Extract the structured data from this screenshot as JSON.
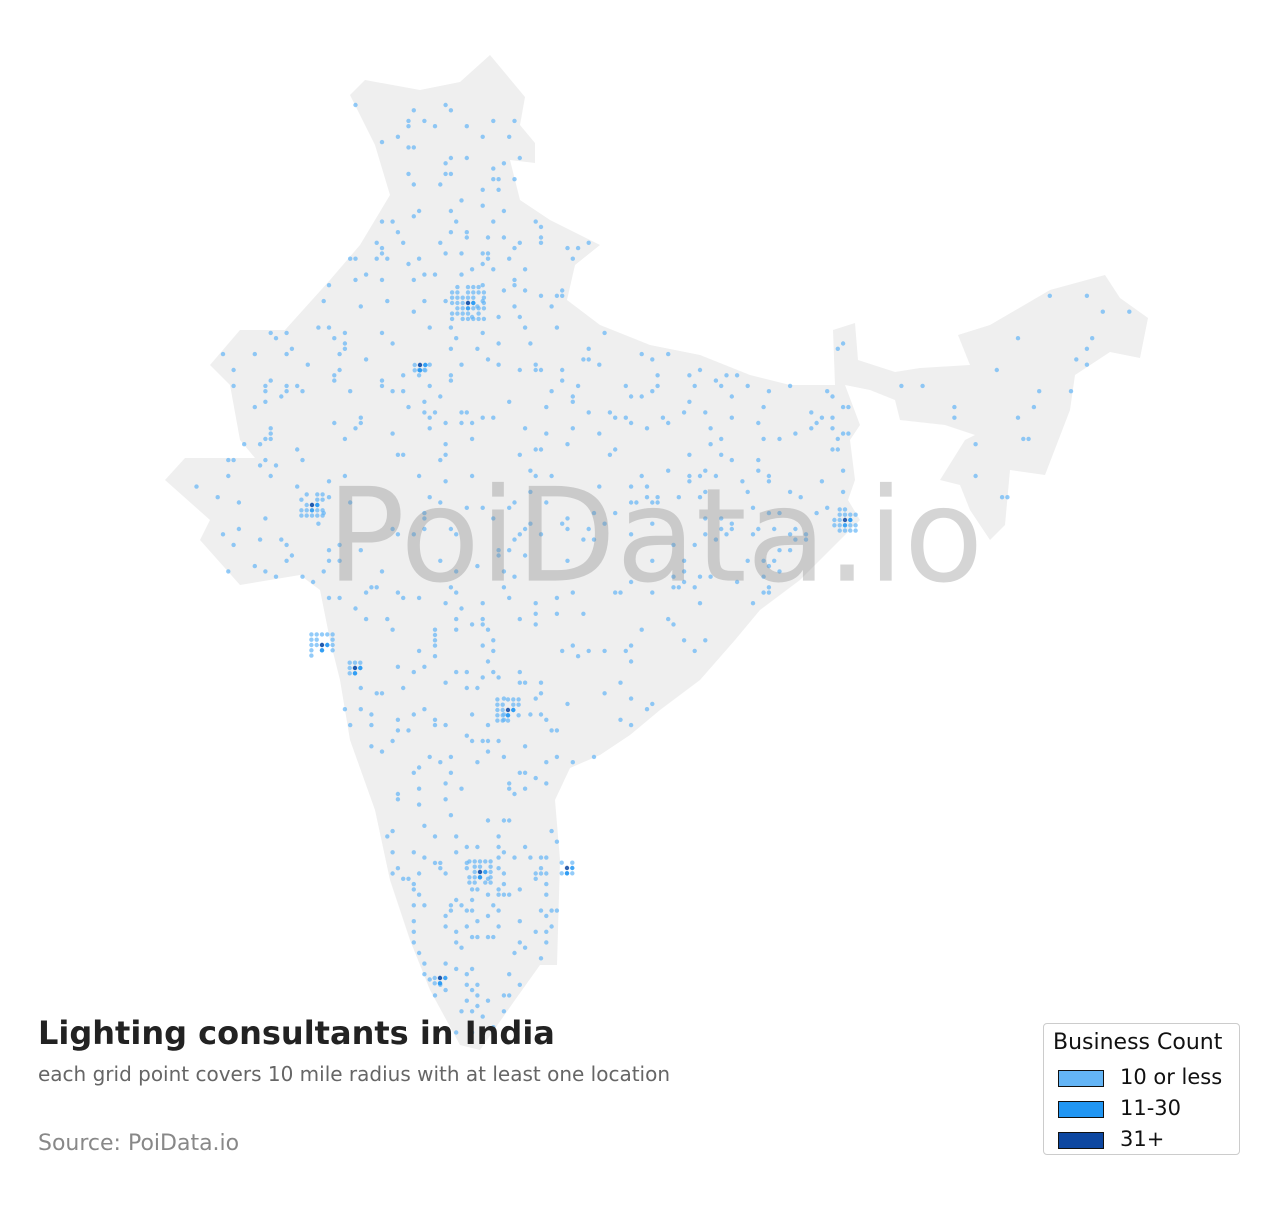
{
  "title": "Lighting consultants in India",
  "subtitle": "each grid point covers 10 mile radius with at least one location",
  "source": "Source: PoiData.io",
  "watermark": "PoiData.io",
  "legend": {
    "title": "Business Count",
    "items": [
      {
        "label": "10 or less",
        "color": "#64b5f6"
      },
      {
        "label": "11-30",
        "color": "#2196f3"
      },
      {
        "label": "31+",
        "color": "#0d47a1"
      }
    ]
  }
}
